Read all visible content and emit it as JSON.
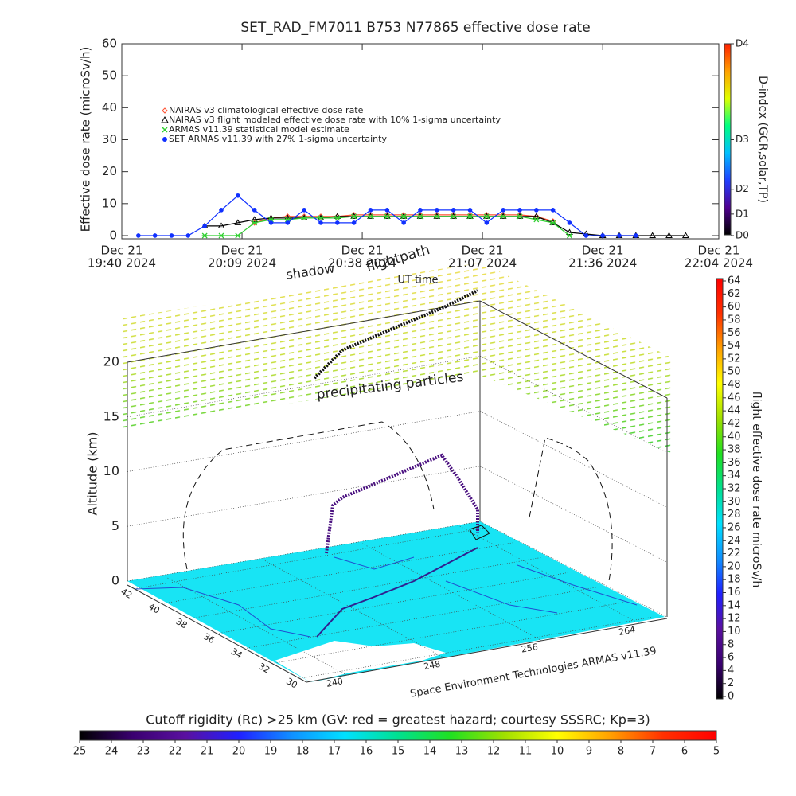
{
  "chart_data": [
    {
      "type": "line",
      "title": "SET_RAD_FM7011  B753 N77865 effective dose rate",
      "ylabel": "Effective dose rate (microSv/h)",
      "xlabel": "UT time",
      "y2label": "D-index (GCR,solar,TP)",
      "legend": "upper left",
      "x": [
        "2024-12-21T19:44",
        "2024-12-21T19:48",
        "2024-12-21T19:52",
        "2024-12-21T19:56",
        "2024-12-21T20:00",
        "2024-12-21T20:04",
        "2024-12-21T20:08",
        "2024-12-21T20:12",
        "2024-12-21T20:16",
        "2024-12-21T20:20",
        "2024-12-21T20:24",
        "2024-12-21T20:28",
        "2024-12-21T20:32",
        "2024-12-21T20:36",
        "2024-12-21T20:40",
        "2024-12-21T20:44",
        "2024-12-21T20:48",
        "2024-12-21T20:52",
        "2024-12-21T20:56",
        "2024-12-21T21:00",
        "2024-12-21T21:04",
        "2024-12-21T21:08",
        "2024-12-21T21:12",
        "2024-12-21T21:16",
        "2024-12-21T21:20",
        "2024-12-21T21:24",
        "2024-12-21T21:28",
        "2024-12-21T21:32",
        "2024-12-21T21:36",
        "2024-12-21T21:40",
        "2024-12-21T21:44",
        "2024-12-21T21:48",
        "2024-12-21T21:52",
        "2024-12-21T21:56"
      ],
      "series": [
        {
          "name": "NAIRAS v3 climatological effective dose rate",
          "color": "#ff5030",
          "marker": "diamond",
          "values": [
            null,
            null,
            null,
            null,
            null,
            null,
            null,
            4,
            5.5,
            6,
            6,
            6,
            6,
            6.5,
            6.5,
            6.5,
            6.5,
            6.5,
            6.5,
            6.5,
            6.5,
            6.5,
            6.5,
            6.5,
            6,
            4.5,
            null,
            null,
            null,
            null,
            null,
            null,
            null,
            null
          ]
        },
        {
          "name": "NAIRAS v3 flight modeled effective dose rate with 10% 1-sigma uncertainty",
          "color": "#000000",
          "marker": "triangle",
          "values": [
            null,
            null,
            null,
            null,
            3,
            3,
            4,
            5,
            5.5,
            5.5,
            5.5,
            5.5,
            6,
            6,
            6,
            6,
            6,
            6,
            6,
            6,
            6,
            6,
            6,
            6,
            6,
            4,
            1,
            0.5,
            0,
            0,
            0,
            0,
            0,
            0
          ]
        },
        {
          "name": "ARMAS v11.39 statistical model estimate",
          "color": "#30d030",
          "marker": "star",
          "values": [
            null,
            null,
            null,
            null,
            0,
            0,
            0,
            4,
            5,
            5,
            5.5,
            5.5,
            5.5,
            6,
            6,
            6,
            6,
            6,
            6,
            6,
            6,
            6,
            6,
            6,
            5,
            4,
            0,
            null,
            null,
            null,
            null,
            null,
            null,
            null
          ]
        },
        {
          "name": "SET ARMAS v11.39 with 27% 1-sigma uncertainty",
          "color": "#1030ff",
          "marker": "circle",
          "values": [
            0,
            0,
            0,
            0,
            3,
            8,
            12.5,
            8,
            4,
            4,
            8,
            4,
            4,
            4,
            8,
            8,
            4,
            8,
            8,
            8,
            8,
            4,
            8,
            8,
            8,
            8,
            4,
            0,
            0,
            0,
            0,
            null,
            null,
            null
          ]
        }
      ],
      "xlim": [
        "2024-12-21T19:40",
        "2024-12-21T22:04"
      ],
      "xticks": [
        {
          "value": "2024-12-21T19:40",
          "label": [
            "Dec 21",
            "19:40 2024"
          ]
        },
        {
          "value": "2024-12-21T20:09",
          "label": [
            "Dec 21",
            "20:09 2024"
          ]
        },
        {
          "value": "2024-12-21T20:38",
          "label": [
            "Dec 21",
            "20:38 2024"
          ]
        },
        {
          "value": "2024-12-21T21:07",
          "label": [
            "Dec 21",
            "21:07 2024"
          ]
        },
        {
          "value": "2024-12-21T21:36",
          "label": [
            "Dec 21",
            "21:36 2024"
          ]
        },
        {
          "value": "2024-12-21T22:04",
          "label": [
            "Dec 21",
            "22:04 2024"
          ]
        }
      ],
      "ylim": [
        -1,
        60
      ],
      "yticks": [
        0,
        10,
        20,
        30,
        40,
        50,
        60
      ],
      "y2lim": [
        -1,
        60
      ],
      "y2ticks": [
        {
          "value": 0,
          "label": "D0"
        },
        {
          "value": 6.75,
          "label": "D1"
        },
        {
          "value": 14.5,
          "label": "D2"
        },
        {
          "value": 30,
          "label": "D3"
        },
        {
          "value": 60,
          "label": "D4"
        }
      ],
      "y2colors": [
        "#000000",
        "#500090",
        "#2040ff",
        "#00c0ff",
        "#00ff80",
        "#e0ff00",
        "#ffa000",
        "#ff2000"
      ]
    },
    {
      "type": "surface3d",
      "zlabel": "Altitude (km)",
      "zlim": [
        0,
        20
      ],
      "zticks": [
        0,
        5,
        10,
        15,
        20
      ],
      "ylim": [
        42.5,
        29.5
      ],
      "yticks": [
        42,
        40,
        38,
        36,
        34,
        32,
        30
      ],
      "xlim": [
        236.7,
        266.3
      ],
      "xticks": [
        240,
        248,
        256,
        264
      ],
      "annotations": [
        "shadow",
        "flightpath",
        "precipitating particles",
        "Space Environment Technologies ARMAS v11.39"
      ]
    },
    {
      "type": "colorbar",
      "orientation": "vertical",
      "label": "flight effective dose rate microSv/h",
      "lim": [
        0,
        64
      ],
      "ticks": [
        0,
        2,
        4,
        6,
        8,
        10,
        12,
        14,
        16,
        18,
        20,
        22,
        24,
        26,
        28,
        30,
        32,
        34,
        36,
        38,
        40,
        42,
        44,
        46,
        48,
        50,
        52,
        54,
        56,
        58,
        60,
        62,
        64
      ],
      "colors": [
        "#000000",
        "#3a0070",
        "#5a10a0",
        "#2020ff",
        "#1090ff",
        "#00e0ff",
        "#00e090",
        "#20e020",
        "#a0e000",
        "#ffff00",
        "#ffa000",
        "#ff3000",
        "#ff0000"
      ]
    },
    {
      "type": "colorbar",
      "orientation": "horizontal",
      "label": "Cutoff rigidity (Rc) >25 km (GV: red = greatest hazard; courtesy SSSRC; Kp=3)",
      "lim": [
        25,
        5
      ],
      "ticks": [
        25,
        24,
        23,
        22,
        21,
        20,
        19,
        18,
        17,
        16,
        15,
        14,
        13,
        12,
        11,
        10,
        9,
        8,
        7,
        6,
        5
      ],
      "colors": [
        "#000000",
        "#3a0070",
        "#5a10a0",
        "#2020ff",
        "#1090ff",
        "#00e0ff",
        "#00e090",
        "#20e020",
        "#a0e000",
        "#ffff00",
        "#ffa000",
        "#ff3000",
        "#ff0000"
      ]
    }
  ]
}
